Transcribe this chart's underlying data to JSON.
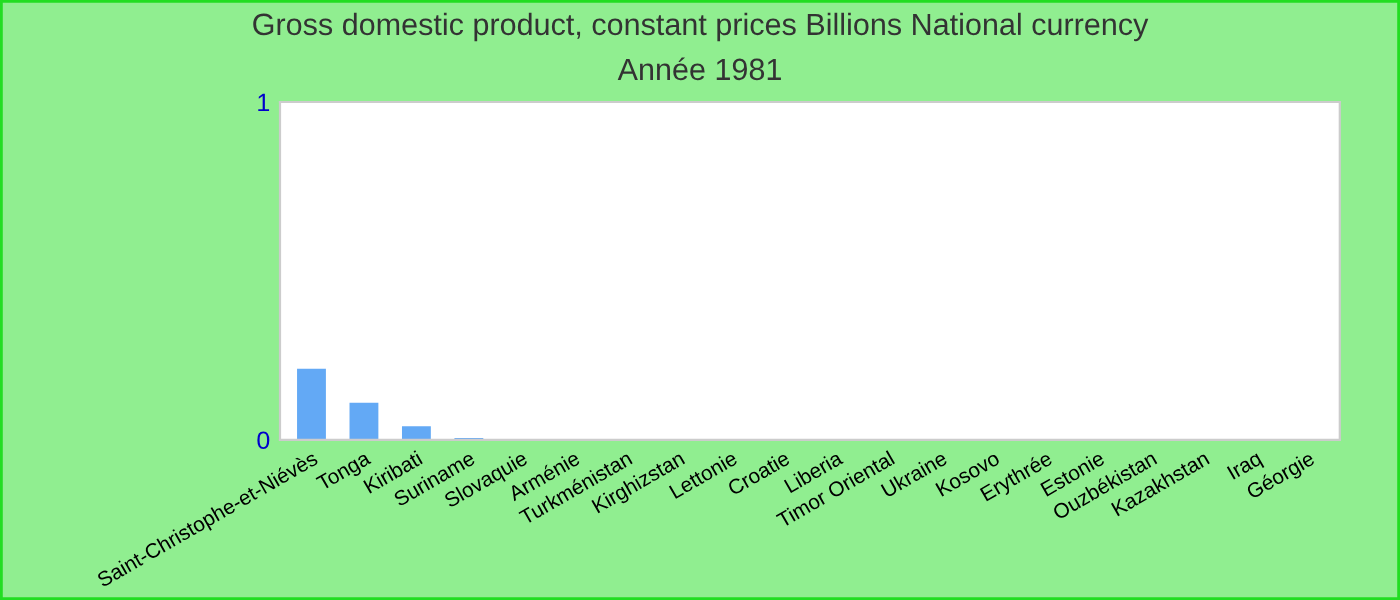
{
  "chart_data": {
    "type": "bar",
    "title": "Gross domestic product, constant prices Billions National currency",
    "subtitle": "Année 1981",
    "categories": [
      "Saint-Christophe-et-Niévès",
      "Tonga",
      "Kiribati",
      "Suriname",
      "Slovaquie",
      "Arménie",
      "Turkménistan",
      "Kirghizstan",
      "Lettonie",
      "Croatie",
      "Liberia",
      "Timor Oriental",
      "Ukraine",
      "Kosovo",
      "Erythrée",
      "Estonie",
      "Ouzbékistan",
      "Kazakhstan",
      "Iraq",
      "Géorgie"
    ],
    "values": [
      0.21,
      0.11,
      0.04,
      0.005,
      0,
      0,
      0,
      0,
      0,
      0,
      0,
      0,
      0,
      0,
      0,
      0,
      0,
      0,
      0,
      0
    ],
    "color": "#63a9f5",
    "ylim": [
      0,
      1
    ],
    "yticks": [
      0,
      1
    ],
    "grid": false
  }
}
